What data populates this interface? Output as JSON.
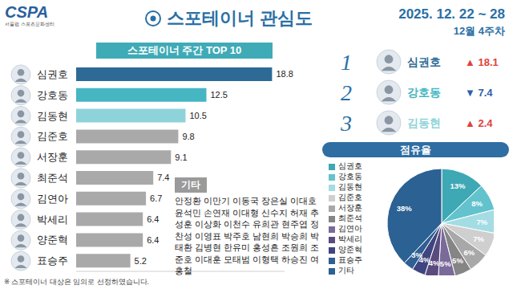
{
  "header": {
    "logo": "CSPA",
    "logo_subtitle": "서울랩 스포츠문화센터",
    "title": "스포테이너 관심도",
    "date": "2025. 12. 22 ~ 28",
    "week": "12월 4주차"
  },
  "chart_data": [
    {
      "type": "bar",
      "title": "스포테이너 주간 TOP 10",
      "orientation": "horizontal",
      "categories": [
        "심권호",
        "강호동",
        "김동현",
        "김준호",
        "서장훈",
        "최준석",
        "김연아",
        "박세리",
        "양준혁",
        "표승주"
      ],
      "values": [
        18.8,
        12.5,
        10.5,
        9.8,
        9.1,
        7.4,
        6.7,
        6.4,
        6.4,
        5.2
      ],
      "colors": [
        "#2d6a96",
        "#45b6c2",
        "#8fd3da",
        "#a9a9a9",
        "#a9a9a9",
        "#a9a9a9",
        "#a9a9a9",
        "#a9a9a9",
        "#a9a9a9",
        "#a9a9a9"
      ],
      "xlim": [
        0,
        20
      ],
      "tick_labels": false,
      "data_labels": true
    },
    {
      "type": "pie",
      "title": "점유율",
      "categories": [
        "심권호",
        "강호동",
        "김동현",
        "김준호",
        "서장훈",
        "최준석",
        "김연아",
        "박세리",
        "양준혁",
        "표승주",
        "기타"
      ],
      "values": [
        13,
        8,
        7,
        7,
        6,
        5,
        5,
        4,
        4,
        3,
        38
      ],
      "value_labels": [
        "13%",
        "8%",
        "7%",
        "7%",
        "6%",
        "5%",
        "5%",
        "4%",
        "4%",
        "3%",
        "38%"
      ],
      "colors": [
        "#3ea8b4",
        "#62c3cd",
        "#a3dde3",
        "#cfcfcf",
        "#a8a8a8",
        "#858585",
        "#7a6a9a",
        "#5a4b7e",
        "#3f4580",
        "#2f5f93",
        "#2b6193"
      ],
      "data_labels": true
    }
  ],
  "ranking": [
    {
      "rank": 1,
      "name": "심권호",
      "color": "#2d6a96",
      "change": {
        "value": 18.1,
        "label": "▲ 18.1"
      }
    },
    {
      "rank": 2,
      "name": "강호동",
      "color": "#45b6c2",
      "change": {
        "value": -7.4,
        "label": "▼ 7.4"
      }
    },
    {
      "rank": 3,
      "name": "김동현",
      "color": "#8fd3da",
      "change": {
        "value": 2.4,
        "label": "▲ 2.4"
      }
    }
  ],
  "others": {
    "title": "기타",
    "names": [
      "안정환",
      "이만기",
      "이동국",
      "장은실",
      "이대호",
      "윤석민",
      "손연재",
      "이대형",
      "신수지",
      "허재",
      "추성훈",
      "이상화",
      "이천수",
      "유희관",
      "현주엽",
      "정찬성",
      "이영표",
      "박주호",
      "남현희",
      "박승희",
      "박태환",
      "김병현",
      "한유미",
      "홍성흔",
      "조원희",
      "조준호",
      "이대훈",
      "모태범",
      "이형택",
      "하승진",
      "여홍철"
    ]
  },
  "footnote": "※ 스포테이너 대상은 임의로 선정하였습니다."
}
